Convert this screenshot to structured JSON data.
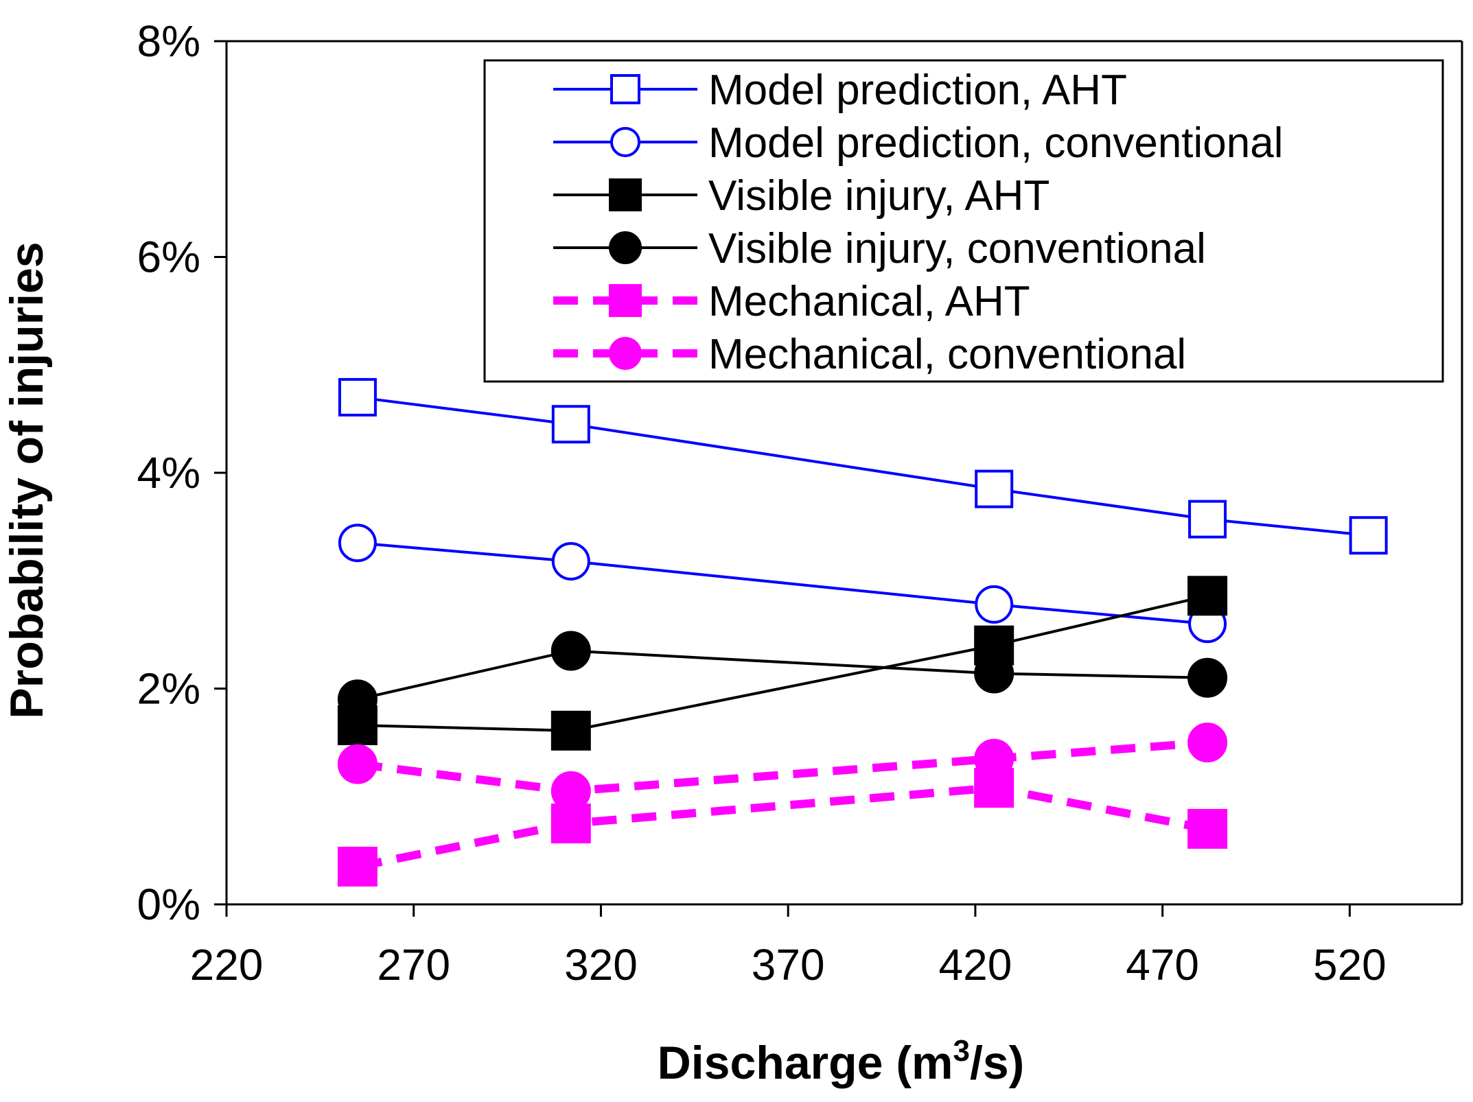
{
  "chart_data": {
    "type": "line",
    "title": "",
    "xlabel_main": "Discharge (m",
    "xlabel_sup": "3",
    "xlabel_tail": "/s)",
    "ylabel": "Probability of injuries",
    "xlim": [
      220,
      550
    ],
    "ylim": [
      0,
      0.08
    ],
    "x_ticks": [
      220,
      270,
      320,
      370,
      420,
      470,
      520
    ],
    "x_tick_labels": [
      "220",
      "270",
      "320",
      "370",
      "420",
      "470",
      "520"
    ],
    "y_ticks": [
      0,
      0.02,
      0.04,
      0.06,
      0.08
    ],
    "y_tick_labels": [
      "0%",
      "2%",
      "4%",
      "6%",
      "8%"
    ],
    "grid": false,
    "legend_position": "top-right",
    "series": [
      {
        "name": "Model prediction, AHT",
        "color": "#0000ff",
        "marker": "square-open",
        "dash": false,
        "x": [
          255,
          312,
          425,
          482,
          525
        ],
        "y": [
          0.047,
          0.0445,
          0.0385,
          0.0357,
          0.0342
        ]
      },
      {
        "name": "Model prediction, conventional",
        "color": "#0000ff",
        "marker": "circle-open",
        "dash": false,
        "x": [
          255,
          312,
          425,
          482
        ],
        "y": [
          0.0335,
          0.0318,
          0.0278,
          0.026
        ]
      },
      {
        "name": "Visible injury, AHT",
        "color": "#000000",
        "marker": "square-filled",
        "dash": false,
        "x": [
          255,
          312,
          425,
          482
        ],
        "y": [
          0.0166,
          0.0161,
          0.024,
          0.0286
        ]
      },
      {
        "name": "Visible injury, conventional",
        "color": "#000000",
        "marker": "circle-filled",
        "dash": false,
        "x": [
          255,
          312,
          425,
          482
        ],
        "y": [
          0.019,
          0.0235,
          0.0214,
          0.021
        ]
      },
      {
        "name": "Mechanical, AHT",
        "color": "#ff00ff",
        "marker": "square-filled",
        "dash": true,
        "x": [
          255,
          312,
          425,
          482
        ],
        "y": [
          0.0035,
          0.0075,
          0.0108,
          0.007
        ]
      },
      {
        "name": "Mechanical, conventional",
        "color": "#ff00ff",
        "marker": "circle-filled",
        "dash": true,
        "x": [
          255,
          312,
          425,
          482
        ],
        "y": [
          0.013,
          0.0105,
          0.0135,
          0.015
        ]
      }
    ]
  }
}
